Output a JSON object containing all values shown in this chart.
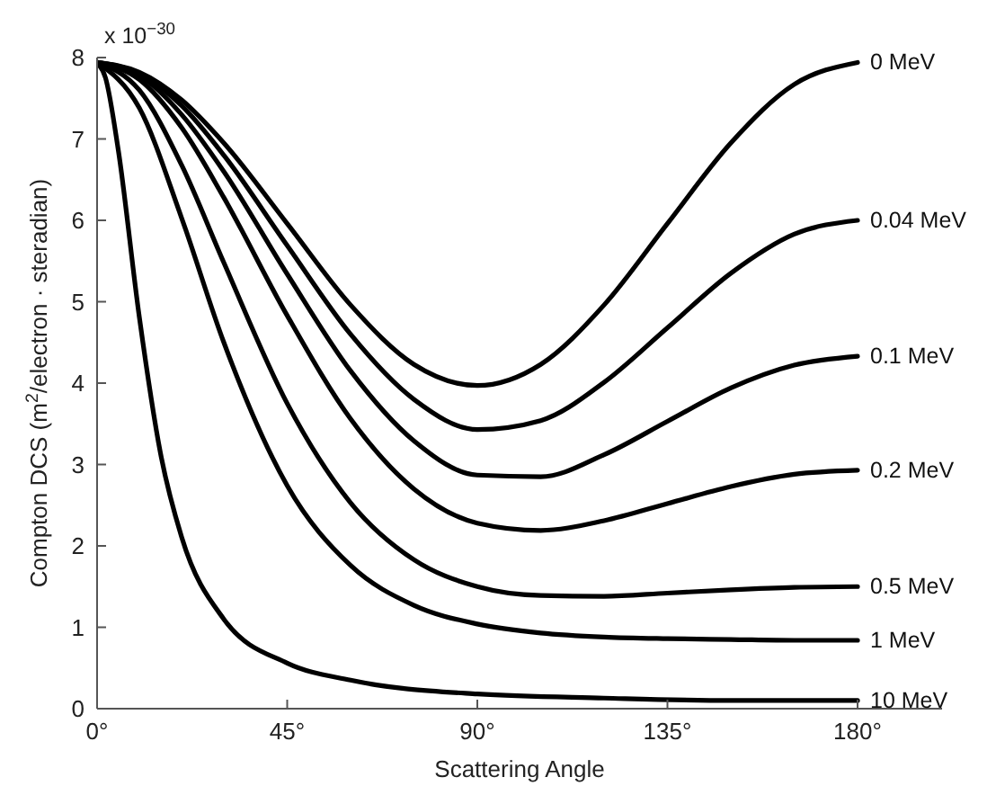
{
  "chart_data": {
    "type": "line",
    "xlabel": "Scattering Angle",
    "ylabel": "Compton DCS (m$^{2}$/electron · steradian)",
    "annotations": [
      "x 10$^{−30}$"
    ],
    "x": [
      0,
      10,
      20,
      30,
      45,
      60,
      75,
      90,
      105,
      120,
      135,
      150,
      165,
      180
    ],
    "series": [
      {
        "name": "0 MeV",
        "color": "#000000",
        "values": [
          7.94,
          7.82,
          7.48,
          6.95,
          5.96,
          4.96,
          4.23,
          3.97,
          4.23,
          4.96,
          5.96,
          6.95,
          7.67,
          7.94
        ]
      },
      {
        "name": "0.04 MeV",
        "color": "#000000",
        "values": [
          7.94,
          7.8,
          7.41,
          6.8,
          5.69,
          4.6,
          3.8,
          3.43,
          3.54,
          4.01,
          4.68,
          5.35,
          5.83,
          6.0
        ]
      },
      {
        "name": "0.1 MeV",
        "color": "#000000",
        "values": [
          7.94,
          7.78,
          7.3,
          6.6,
          5.34,
          4.15,
          3.29,
          2.87,
          2.85,
          3.12,
          3.53,
          3.94,
          4.22,
          4.33
        ]
      },
      {
        "name": "0.2 MeV",
        "color": "#000000",
        "values": [
          7.94,
          7.73,
          7.14,
          6.28,
          4.83,
          3.56,
          2.7,
          2.28,
          2.19,
          2.31,
          2.52,
          2.73,
          2.88,
          2.93
        ]
      },
      {
        "name": "0.5 MeV",
        "color": "#000000",
        "values": [
          7.94,
          7.6,
          6.68,
          5.48,
          3.75,
          2.53,
          1.83,
          1.5,
          1.39,
          1.38,
          1.42,
          1.46,
          1.49,
          1.5
        ]
      },
      {
        "name": "1 MeV",
        "color": "#000000",
        "values": [
          7.94,
          7.38,
          6.03,
          4.5,
          2.74,
          1.76,
          1.27,
          1.04,
          0.93,
          0.88,
          0.86,
          0.85,
          0.84,
          0.84
        ]
      },
      {
        "name": "10 MeV",
        "color": "#000000",
        "x": [
          0,
          2,
          5,
          10,
          15,
          20,
          30,
          45,
          60,
          90,
          120,
          150,
          180
        ],
        "values": [
          7.94,
          7.75,
          6.87,
          4.81,
          3.14,
          2.11,
          1.1,
          0.56,
          0.35,
          0.18,
          0.13,
          0.1,
          0.1
        ]
      }
    ],
    "xlim": [
      0,
      200
    ],
    "xticks": [
      {
        "value": 0,
        "label": "0°"
      },
      {
        "value": 45,
        "label": "45°"
      },
      {
        "value": 90,
        "label": "90°"
      },
      {
        "value": 135,
        "label": "135°"
      },
      {
        "value": 180,
        "label": "180°"
      }
    ],
    "ylim": [
      0,
      8
    ],
    "yticks": [
      0,
      1,
      2,
      3,
      4,
      5,
      6,
      7,
      8
    ],
    "line_style": "solid"
  }
}
